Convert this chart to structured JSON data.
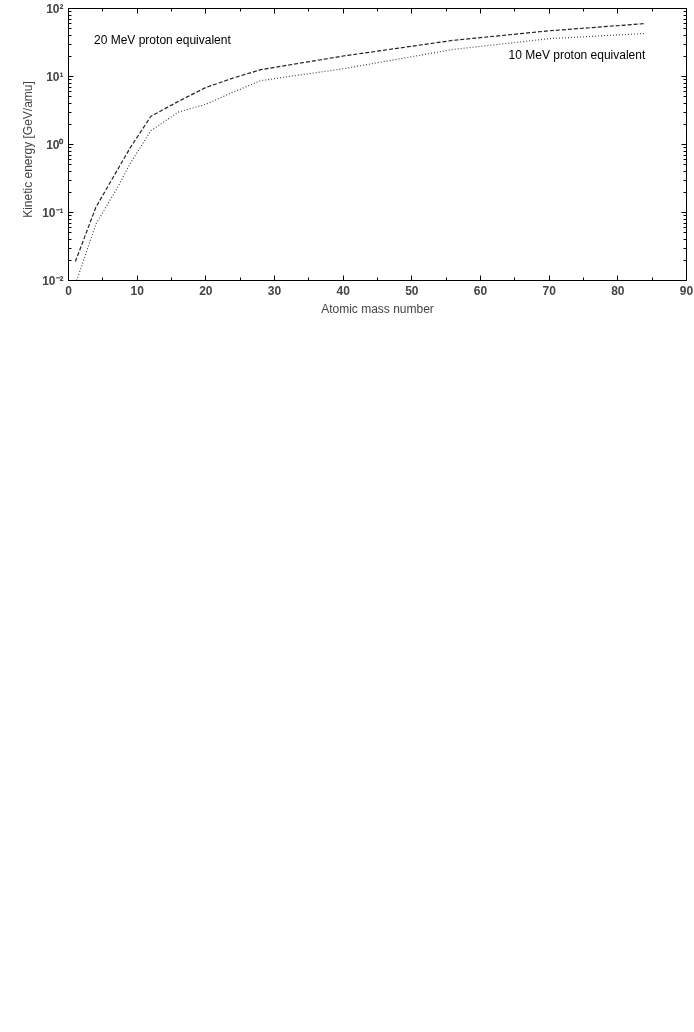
{
  "chart_data": {
    "type": "line",
    "xlabel": "Atomic mass number",
    "ylabel": "Kinetic energy    [GeV/amu]",
    "log": "y",
    "grid": false,
    "xlim": [
      0,
      90
    ],
    "xticks": [
      0,
      10,
      20,
      30,
      40,
      50,
      60,
      70,
      80,
      90
    ],
    "ylim": [
      0.01,
      100
    ],
    "yticks": [
      {
        "value": 0.01,
        "label": "10⁻²"
      },
      {
        "value": 0.1,
        "label": "10⁻¹"
      },
      {
        "value": 1,
        "label": "10⁰"
      },
      {
        "value": 10,
        "label": "10¹"
      },
      {
        "value": 100,
        "label": "10²"
      }
    ],
    "series": [
      {
        "name": "20 MeV proton equivalent",
        "color": "#222222",
        "line_style": "dashed",
        "x": [
          1,
          4,
          9,
          12,
          16,
          20,
          24,
          28,
          40,
          56,
          70,
          84
        ],
        "values": [
          0.019,
          0.12,
          0.9,
          2.6,
          4.3,
          6.9,
          9.5,
          12.6,
          20,
          34,
          47,
          60
        ]
      },
      {
        "name": "10 MeV proton equivalent",
        "color": "#444444",
        "line_style": "dotted",
        "x": [
          1.2,
          4,
          7,
          9,
          12,
          16,
          20,
          24,
          28,
          40,
          56,
          70,
          84
        ],
        "values": [
          0.01,
          0.068,
          0.22,
          0.53,
          1.6,
          3.0,
          3.9,
          5.9,
          8.7,
          13,
          25,
          36,
          43
        ]
      }
    ]
  }
}
